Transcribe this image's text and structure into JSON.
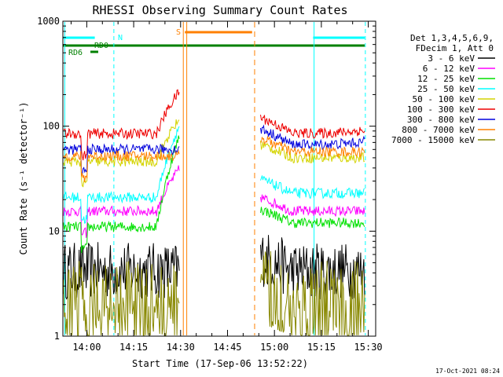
{
  "chart_data": {
    "type": "line",
    "title": "RHESSI Observing Summary Count Rates",
    "xlabel": "Start Time (17-Sep-06 13:52:22)",
    "ylabel": "Count Rate (s⁻¹ detector⁻¹)",
    "x_range_minutes_after_13:52:22": [
      0,
      100
    ],
    "ylim": [
      1,
      1000
    ],
    "yscale": "log",
    "x_ticks": [
      "14:00",
      "14:15",
      "14:30",
      "14:45",
      "15:00",
      "15:15",
      "15:30"
    ],
    "y_ticks": [
      "1",
      "10",
      "100",
      "1000"
    ],
    "legend_header": [
      "Det 1,3,4,5,6,9,",
      "FDecim 1, Att 0"
    ],
    "legend_placement": "right",
    "series": [
      {
        "name": "3 - 6 keV",
        "color": "#000000",
        "level_before_gap": 4.2,
        "level_after_gap": 4.2
      },
      {
        "name": "6 - 12 keV",
        "color": "#ff00ff",
        "level_before_gap": 15.5,
        "level_after_gap": 15.5
      },
      {
        "name": "12 - 25 keV",
        "color": "#00e000",
        "level_before_gap": 11,
        "level_after_gap": 12
      },
      {
        "name": "25 - 50 keV",
        "color": "#00ffff",
        "level_before_gap": 21,
        "level_after_gap": 23
      },
      {
        "name": "50 - 100 keV",
        "color": "#d4d400",
        "level_before_gap": 46,
        "level_after_gap": 50
      },
      {
        "name": "100 - 300 keV",
        "color": "#ee0000",
        "level_before_gap": 85,
        "level_after_gap": 90
      },
      {
        "name": "300 - 800 keV",
        "color": "#0000dd",
        "level_before_gap": 60,
        "level_after_gap": 70
      },
      {
        "name": "800 - 7000 keV",
        "color": "#ff8000",
        "level_before_gap": 52,
        "level_after_gap": 57
      },
      {
        "name": "7000 - 15000 keV",
        "color": "#888800",
        "level_before_gap": 2.2,
        "level_after_gap": 2.2
      }
    ],
    "flags": [
      {
        "label": "N",
        "color": "#00ffff"
      },
      {
        "label": "S",
        "color": "#ff8000"
      },
      {
        "label": "RD0",
        "color": "#008000"
      },
      {
        "label": "RD6",
        "color": "#008000"
      }
    ],
    "footer_timestamp": "17-Oct-2021 08:24"
  }
}
